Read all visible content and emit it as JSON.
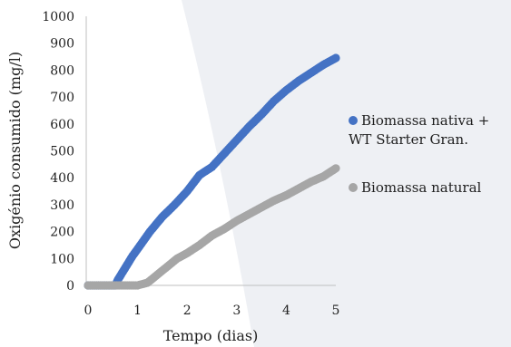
{
  "chart_data": {
    "type": "scatter",
    "title": "",
    "xlabel": "Tempo (dias)",
    "ylabel": "Oxigénio consumido (mg/l)",
    "xlim": [
      0,
      5
    ],
    "ylim": [
      0,
      1000
    ],
    "xticks": [
      0,
      1,
      2,
      3,
      4,
      5
    ],
    "yticks": [
      0,
      100,
      200,
      300,
      400,
      500,
      600,
      700,
      800,
      900,
      1000
    ],
    "grid": false,
    "legend_position": "right",
    "series": [
      {
        "name_lines": [
          "Biomassa nativa +",
          "WT Starter Gran."
        ],
        "color": "#4472c4",
        "points": [
          [
            0.0,
            0
          ],
          [
            0.3,
            0
          ],
          [
            0.55,
            0
          ],
          [
            0.6,
            20
          ],
          [
            0.7,
            50
          ],
          [
            0.8,
            80
          ],
          [
            0.9,
            110
          ],
          [
            1.0,
            135
          ],
          [
            1.25,
            200
          ],
          [
            1.5,
            255
          ],
          [
            1.75,
            300
          ],
          [
            2.0,
            350
          ],
          [
            2.25,
            410
          ],
          [
            2.5,
            440
          ],
          [
            2.75,
            490
          ],
          [
            3.0,
            540
          ],
          [
            3.25,
            590
          ],
          [
            3.5,
            635
          ],
          [
            3.75,
            685
          ],
          [
            4.0,
            725
          ],
          [
            4.25,
            760
          ],
          [
            4.5,
            790
          ],
          [
            4.75,
            820
          ],
          [
            5.0,
            845
          ]
        ]
      },
      {
        "name_lines": [
          "Biomassa natural"
        ],
        "color": "#a6a6a6",
        "points": [
          [
            0.0,
            0
          ],
          [
            0.5,
            0
          ],
          [
            1.0,
            0
          ],
          [
            1.2,
            10
          ],
          [
            1.4,
            40
          ],
          [
            1.6,
            70
          ],
          [
            1.8,
            100
          ],
          [
            2.0,
            120
          ],
          [
            2.25,
            150
          ],
          [
            2.5,
            185
          ],
          [
            2.75,
            210
          ],
          [
            3.0,
            240
          ],
          [
            3.25,
            265
          ],
          [
            3.5,
            290
          ],
          [
            3.75,
            315
          ],
          [
            4.0,
            335
          ],
          [
            4.25,
            360
          ],
          [
            4.5,
            385
          ],
          [
            4.75,
            405
          ],
          [
            5.0,
            435
          ]
        ]
      }
    ]
  }
}
